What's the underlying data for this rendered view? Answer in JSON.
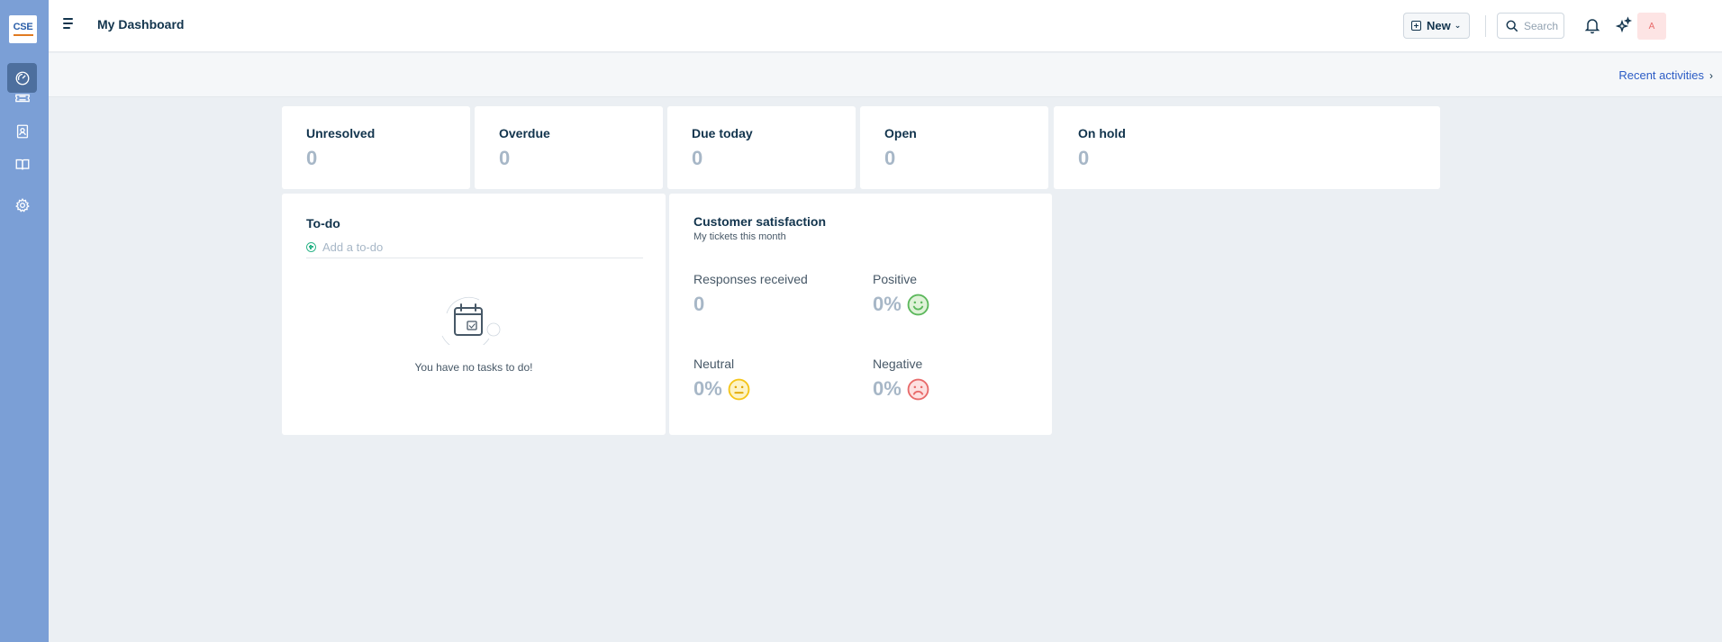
{
  "sidebar": {
    "logo_text": "CSE",
    "items": [
      {
        "name": "dashboard",
        "active": true
      },
      {
        "name": "tickets",
        "active": false
      },
      {
        "name": "contacts",
        "active": false
      },
      {
        "name": "knowledge-base",
        "active": false
      },
      {
        "name": "admin",
        "active": false
      }
    ]
  },
  "header": {
    "title": "My Dashboard",
    "new_label": "New",
    "search_placeholder": "Search",
    "avatar_initial": "A"
  },
  "subheader": {
    "recent_label": "Recent activities"
  },
  "stats": [
    {
      "label": "Unresolved",
      "value": "0"
    },
    {
      "label": "Overdue",
      "value": "0"
    },
    {
      "label": "Due today",
      "value": "0"
    },
    {
      "label": "Open",
      "value": "0"
    },
    {
      "label": "On hold",
      "value": "0"
    }
  ],
  "todo": {
    "title": "To-do",
    "placeholder": "Add a to-do",
    "empty_message": "You have no tasks to do!"
  },
  "csat": {
    "title": "Customer satisfaction",
    "subtitle": "My tickets this month",
    "responses_label": "Responses received",
    "responses_value": "0",
    "positive_label": "Positive",
    "positive_value": "0%",
    "neutral_label": "Neutral",
    "neutral_value": "0%",
    "negative_label": "Negative",
    "negative_value": "0%"
  },
  "colors": {
    "sidebar": "#7b9fd6",
    "positive": "#5cb85c",
    "neutral": "#f5c518",
    "negative": "#e86a6a",
    "link": "#2c5cc5"
  }
}
